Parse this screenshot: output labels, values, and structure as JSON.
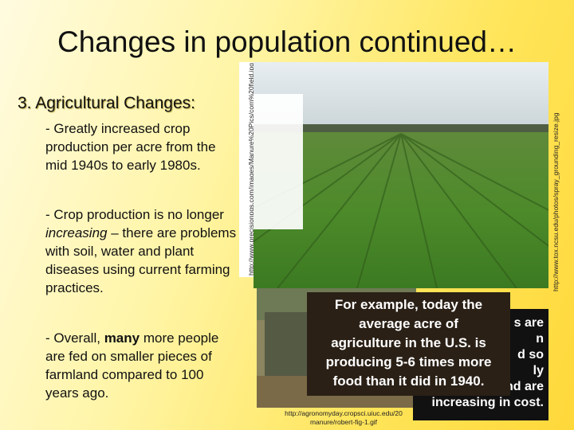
{
  "title": "Changes in population continued…",
  "section": "3. Agricultural Changes:",
  "bullets": [
    [
      "- Greatly increased crop production per acre from the mid 1940s to early 1980s."
    ],
    [
      "- Crop production is no longer ",
      "increasing",
      " – there are problems with soil, water and plant diseases using current farming practices."
    ],
    [
      "- Overall, ",
      "many",
      " more people are fed on smaller pieces of farmland compared to 100 years ago."
    ]
  ],
  "callout": [
    "For example, today the",
    "average acre of",
    "agriculture in the U.S. is",
    "producing 5-6 times more",
    "food than it did in 1940."
  ],
  "back_box": [
    "s are",
    "n",
    "d so",
    "ly",
    "sustainable and are",
    "increasing in cost."
  ],
  "credits": {
    "field": "http://www.tox.ncsu.edu/photos/spray_grounding_resize.jpg",
    "corn": "http://www.precisionpgs.com/images/Manure%20Pics/corn%20field.jpg",
    "manure": [
      "http://agronomyday.cropsci.uiuc.edu/20",
      "manure/robert-fig-1.gif"
    ]
  }
}
